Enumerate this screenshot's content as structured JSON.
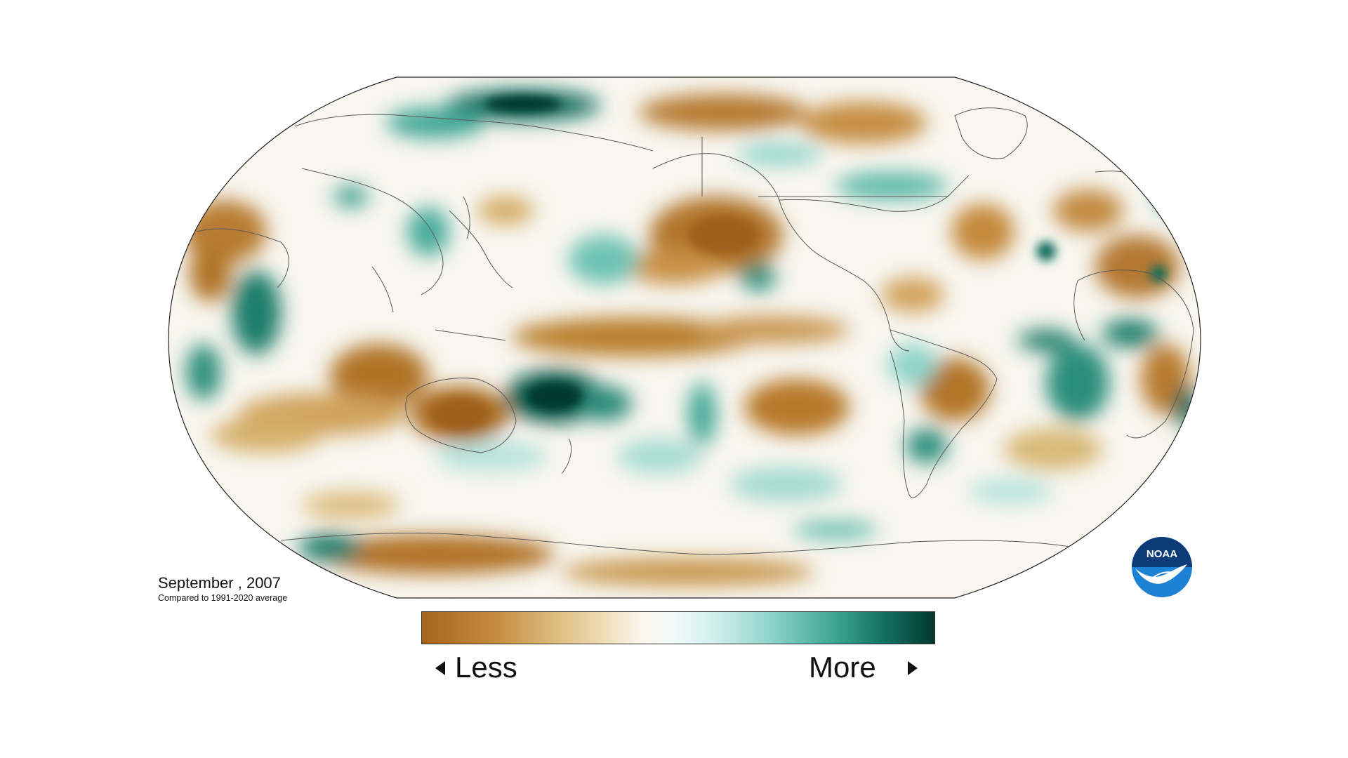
{
  "caption": {
    "title": "September , 2007",
    "subtitle": "Compared to 1991-2020 average"
  },
  "legend": {
    "less_label": "Less",
    "more_label": "More",
    "colors": [
      "#a6651d",
      "#c48b40",
      "#ddbb7e",
      "#f0dfba",
      "#fbf7ee",
      "#f2fbfa",
      "#cdeeea",
      "#8fd4ca",
      "#42a796",
      "#0f6c5c",
      "#06382f"
    ]
  },
  "logo": {
    "text": "NOAA",
    "color": "#1e82d4"
  },
  "colors": {
    "dry": "#b0742a",
    "wet": "#0f6c5c",
    "neutral": "#f7f6f0",
    "border_lines": "#5a5a5a"
  }
}
